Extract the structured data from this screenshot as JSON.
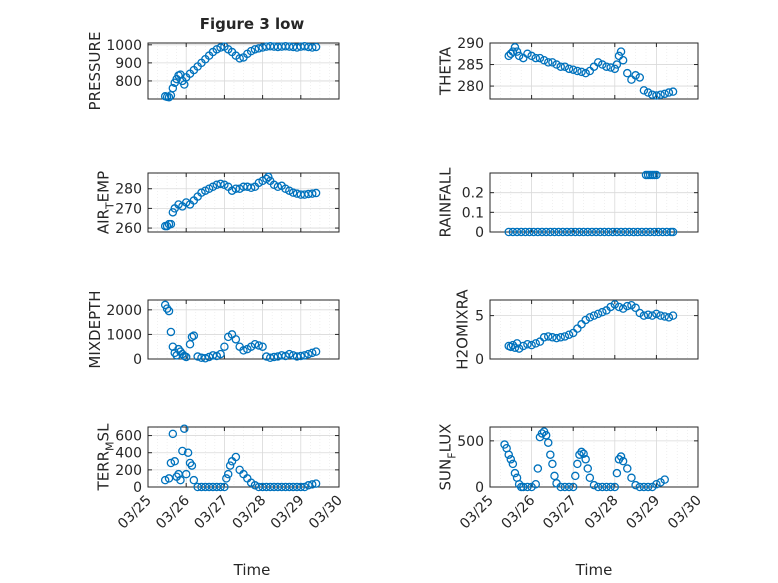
{
  "figure": {
    "title": "Figure 3 low",
    "xlabel": "Time",
    "marker_color": "#0072BD",
    "grid_color": "#d9d9d9"
  },
  "chart_data": [
    {
      "type": "scatter",
      "panel": "top-left",
      "ylabel": "PRESSURE",
      "ylabel_parts": [
        "PRESSURE"
      ],
      "title": "Figure 3 low",
      "xlim": [
        "03/25",
        "03/30"
      ],
      "xticks": [
        "03/25",
        "03/26",
        "03/27",
        "03/28",
        "03/29",
        "03/30"
      ],
      "ylim": [
        700,
        1010
      ],
      "yticks": [
        800,
        900,
        1000
      ],
      "grid": true,
      "show_xticklabels": false,
      "x": [
        25.45,
        25.5,
        25.55,
        25.6,
        25.65,
        25.7,
        25.75,
        25.8,
        25.85,
        25.9,
        25.95,
        26.0,
        26.1,
        26.2,
        26.3,
        26.4,
        26.5,
        26.6,
        26.7,
        26.8,
        26.9,
        27.0,
        27.1,
        27.2,
        27.3,
        27.4,
        27.5,
        27.6,
        27.7,
        27.8,
        27.9,
        28.0,
        28.1,
        28.2,
        28.3,
        28.4,
        28.5,
        28.6,
        28.7,
        28.8,
        28.9,
        29.0,
        29.1,
        29.2,
        29.3,
        29.4
      ],
      "y": [
        715,
        712,
        710,
        720,
        760,
        790,
        810,
        830,
        835,
        800,
        780,
        820,
        840,
        860,
        880,
        900,
        920,
        940,
        960,
        975,
        985,
        990,
        975,
        960,
        940,
        925,
        930,
        950,
        965,
        975,
        980,
        985,
        990,
        992,
        990,
        988,
        990,
        992,
        990,
        988,
        985,
        990,
        992,
        988,
        985,
        988
      ]
    },
    {
      "type": "scatter",
      "panel": "top-right",
      "ylabel": "THETA",
      "ylabel_parts": [
        "THETA"
      ],
      "xlim": [
        "03/25",
        "03/30"
      ],
      "xticks": [
        "03/25",
        "03/26",
        "03/27",
        "03/28",
        "03/29",
        "03/30"
      ],
      "ylim": [
        277,
        290
      ],
      "yticks": [
        280,
        285,
        290
      ],
      "grid": true,
      "show_xticklabels": false,
      "x": [
        25.45,
        25.5,
        25.55,
        25.6,
        25.65,
        25.7,
        25.8,
        25.9,
        26.0,
        26.1,
        26.2,
        26.3,
        26.4,
        26.5,
        26.6,
        26.7,
        26.8,
        26.9,
        27.0,
        27.1,
        27.2,
        27.3,
        27.4,
        27.5,
        27.6,
        27.7,
        27.8,
        27.9,
        28.0,
        28.05,
        28.1,
        28.15,
        28.2,
        28.3,
        28.4,
        28.5,
        28.6,
        28.7,
        28.8,
        28.9,
        29.0,
        29.1,
        29.2,
        29.3,
        29.4
      ],
      "y": [
        287,
        287.5,
        288,
        289,
        288,
        287,
        286.5,
        287.5,
        287,
        286.5,
        286.5,
        286,
        285.5,
        285.5,
        285,
        284.5,
        284.5,
        284,
        283.8,
        283.5,
        283.3,
        283,
        283.5,
        284.5,
        285.5,
        285,
        284.5,
        284.3,
        284,
        285,
        287,
        288,
        286,
        283,
        281.5,
        282.5,
        282,
        279,
        278.5,
        278,
        277.8,
        278,
        278.2,
        278.5,
        278.7
      ]
    },
    {
      "type": "scatter",
      "panel": "mid-left",
      "ylabel": "AIR_TEMP",
      "ylabel_parts": [
        "AIR",
        "T",
        "EMP"
      ],
      "xlim": [
        "03/25",
        "03/30"
      ],
      "xticks": [
        "03/25",
        "03/26",
        "03/27",
        "03/28",
        "03/29",
        "03/30"
      ],
      "ylim": [
        258,
        288
      ],
      "yticks": [
        260,
        270,
        280
      ],
      "grid": true,
      "show_xticklabels": false,
      "x": [
        25.45,
        25.5,
        25.55,
        25.6,
        25.65,
        25.7,
        25.8,
        25.9,
        26.0,
        26.1,
        26.2,
        26.3,
        26.4,
        26.5,
        26.6,
        26.7,
        26.8,
        26.9,
        27.0,
        27.1,
        27.2,
        27.3,
        27.4,
        27.5,
        27.6,
        27.7,
        27.8,
        27.9,
        28.0,
        28.1,
        28.15,
        28.2,
        28.3,
        28.4,
        28.5,
        28.6,
        28.7,
        28.8,
        28.9,
        29.0,
        29.1,
        29.2,
        29.3,
        29.4
      ],
      "y": [
        261,
        261,
        262,
        262,
        268,
        270,
        272,
        271,
        273,
        272,
        274,
        276,
        278,
        279,
        280,
        281,
        282,
        282.5,
        282,
        281,
        279,
        280,
        280,
        281,
        281,
        280.5,
        281,
        283,
        284,
        285,
        286,
        284,
        282,
        281,
        281.5,
        280,
        279,
        278,
        277.5,
        277,
        277,
        277.3,
        277.5,
        277.8
      ]
    },
    {
      "type": "scatter",
      "panel": "mid-right",
      "ylabel": "RAINFALL",
      "ylabel_parts": [
        "RAINFALL"
      ],
      "xlim": [
        "03/25",
        "03/30"
      ],
      "xticks": [
        "03/25",
        "03/26",
        "03/27",
        "03/28",
        "03/29",
        "03/30"
      ],
      "ylim": [
        0,
        0.3
      ],
      "yticks": [
        0,
        0.1,
        0.2
      ],
      "grid": true,
      "show_xticklabels": false,
      "x": [
        25.45,
        25.55,
        25.65,
        25.75,
        25.85,
        25.95,
        26.05,
        26.15,
        26.25,
        26.35,
        26.45,
        26.55,
        26.65,
        26.75,
        26.85,
        26.95,
        27.05,
        27.15,
        27.25,
        27.35,
        27.45,
        27.55,
        27.65,
        27.75,
        27.85,
        27.95,
        28.05,
        28.15,
        28.25,
        28.35,
        28.45,
        28.55,
        28.65,
        28.75,
        28.85,
        28.95,
        29.05,
        29.15,
        29.25,
        29.35,
        29.4,
        28.75,
        28.8,
        28.85,
        28.9,
        28.95,
        29.0
      ],
      "y": [
        0,
        0,
        0,
        0,
        0,
        0,
        0,
        0,
        0,
        0,
        0,
        0,
        0,
        0,
        0,
        0,
        0,
        0,
        0,
        0,
        0,
        0,
        0,
        0,
        0,
        0,
        0,
        0,
        0,
        0,
        0,
        0,
        0,
        0,
        0,
        0,
        0,
        0,
        0,
        0,
        0,
        0.29,
        0.29,
        0.29,
        0.29,
        0.29,
        0.29
      ]
    },
    {
      "type": "scatter",
      "panel": "row3-left",
      "ylabel": "MIXDEPTH",
      "ylabel_parts": [
        "MIXDEPTH"
      ],
      "xlim": [
        "03/25",
        "03/30"
      ],
      "xticks": [
        "03/25",
        "03/26",
        "03/27",
        "03/28",
        "03/29",
        "03/30"
      ],
      "ylim": [
        0,
        2400
      ],
      "yticks": [
        0,
        1000,
        2000
      ],
      "grid": true,
      "show_xticklabels": false,
      "x": [
        25.45,
        25.5,
        25.55,
        25.6,
        25.65,
        25.7,
        25.75,
        25.8,
        25.85,
        25.9,
        25.95,
        26.0,
        26.1,
        26.15,
        26.2,
        26.3,
        26.4,
        26.5,
        26.6,
        26.7,
        26.8,
        26.9,
        27.0,
        27.1,
        27.2,
        27.3,
        27.4,
        27.5,
        27.6,
        27.7,
        27.8,
        27.9,
        28.0,
        28.1,
        28.2,
        28.3,
        28.4,
        28.5,
        28.6,
        28.7,
        28.8,
        28.9,
        29.0,
        29.1,
        29.2,
        29.3,
        29.4
      ],
      "y": [
        2200,
        2050,
        1950,
        1100,
        500,
        250,
        150,
        400,
        300,
        200,
        120,
        80,
        600,
        900,
        950,
        100,
        50,
        30,
        80,
        150,
        120,
        200,
        500,
        900,
        1000,
        800,
        500,
        350,
        400,
        500,
        600,
        550,
        500,
        100,
        50,
        80,
        100,
        150,
        120,
        200,
        150,
        100,
        120,
        150,
        200,
        250,
        300
      ]
    },
    {
      "type": "scatter",
      "panel": "row3-right",
      "ylabel": "H2OMIXRA",
      "ylabel_parts": [
        "H2OMIXRA"
      ],
      "xlim": [
        "03/25",
        "03/30"
      ],
      "xticks": [
        "03/25",
        "03/26",
        "03/27",
        "03/28",
        "03/29",
        "03/30"
      ],
      "ylim": [
        0,
        6.8
      ],
      "yticks": [
        0,
        5
      ],
      "grid": true,
      "show_xticklabels": false,
      "x": [
        25.45,
        25.5,
        25.55,
        25.6,
        25.65,
        25.7,
        25.8,
        25.9,
        26.0,
        26.1,
        26.2,
        26.3,
        26.4,
        26.5,
        26.6,
        26.7,
        26.8,
        26.9,
        27.0,
        27.1,
        27.2,
        27.3,
        27.4,
        27.5,
        27.6,
        27.7,
        27.8,
        27.9,
        28.0,
        28.1,
        28.2,
        28.3,
        28.4,
        28.5,
        28.6,
        28.7,
        28.8,
        28.9,
        29.0,
        29.1,
        29.2,
        29.3,
        29.4
      ],
      "y": [
        1.5,
        1.4,
        1.6,
        1.3,
        1.8,
        1.2,
        1.5,
        1.7,
        1.6,
        1.8,
        2.0,
        2.5,
        2.6,
        2.5,
        2.4,
        2.5,
        2.6,
        2.8,
        3.0,
        3.5,
        4.0,
        4.5,
        4.8,
        5.0,
        5.2,
        5.4,
        5.6,
        6.0,
        6.3,
        6.0,
        5.8,
        6.1,
        6.2,
        5.9,
        5.3,
        5.0,
        5.1,
        5.0,
        5.2,
        5.0,
        4.9,
        4.8,
        5.0
      ]
    },
    {
      "type": "scatter",
      "panel": "bottom-left",
      "ylabel": "TERR_MSL",
      "ylabel_parts": [
        "TERR",
        "M",
        "SL"
      ],
      "xlim": [
        "03/25",
        "03/30"
      ],
      "xticks": [
        "03/25",
        "03/26",
        "03/27",
        "03/28",
        "03/29",
        "03/30"
      ],
      "ylim": [
        0,
        700
      ],
      "yticks": [
        0,
        200,
        400,
        600
      ],
      "tick_labels_left": [
        "0",
        "200",
        "400",
        "600"
      ],
      "grid": true,
      "show_xticklabels": true,
      "x": [
        25.45,
        25.55,
        25.6,
        25.65,
        25.7,
        25.75,
        25.8,
        25.85,
        25.9,
        25.95,
        26.0,
        26.05,
        26.1,
        26.15,
        26.2,
        26.3,
        26.4,
        26.5,
        26.6,
        26.7,
        26.8,
        26.9,
        27.0,
        27.05,
        27.1,
        27.15,
        27.2,
        27.3,
        27.4,
        27.5,
        27.6,
        27.7,
        27.8,
        27.9,
        28.0,
        28.1,
        28.2,
        28.3,
        28.4,
        28.5,
        28.6,
        28.7,
        28.8,
        28.9,
        29.0,
        29.1,
        29.2,
        29.3,
        29.4
      ],
      "y": [
        80,
        100,
        280,
        620,
        300,
        120,
        150,
        80,
        420,
        680,
        150,
        400,
        280,
        250,
        80,
        0,
        0,
        0,
        0,
        0,
        0,
        0,
        0,
        100,
        150,
        250,
        300,
        350,
        200,
        150,
        100,
        50,
        20,
        0,
        0,
        0,
        0,
        0,
        0,
        0,
        0,
        0,
        0,
        0,
        0,
        0,
        20,
        30,
        40
      ]
    },
    {
      "type": "scatter",
      "panel": "bottom-right",
      "ylabel": "SUN_FLUX",
      "ylabel_parts": [
        "SUN",
        "F",
        "LUX"
      ],
      "xlim": [
        "03/25",
        "03/30"
      ],
      "xticks": [
        "03/25",
        "03/26",
        "03/27",
        "03/28",
        "03/29",
        "03/30"
      ],
      "ylim": [
        0,
        650
      ],
      "yticks": [
        0,
        500
      ],
      "grid": true,
      "show_xticklabels": true,
      "x": [
        25.35,
        25.4,
        25.45,
        25.5,
        25.55,
        25.6,
        25.65,
        25.7,
        25.75,
        25.8,
        25.9,
        26.0,
        26.1,
        26.15,
        26.2,
        26.25,
        26.3,
        26.35,
        26.4,
        26.45,
        26.5,
        26.55,
        26.6,
        26.7,
        26.8,
        26.9,
        27.0,
        27.05,
        27.1,
        27.15,
        27.2,
        27.25,
        27.3,
        27.35,
        27.4,
        27.5,
        27.6,
        27.7,
        27.8,
        27.9,
        28.0,
        28.05,
        28.1,
        28.15,
        28.2,
        28.3,
        28.4,
        28.5,
        28.6,
        28.7,
        28.8,
        28.9,
        29.0,
        29.1,
        29.2
      ],
      "y": [
        460,
        420,
        350,
        300,
        250,
        150,
        100,
        30,
        0,
        0,
        0,
        0,
        30,
        200,
        540,
        580,
        600,
        560,
        480,
        350,
        250,
        120,
        40,
        0,
        0,
        0,
        0,
        120,
        250,
        350,
        380,
        360,
        300,
        200,
        100,
        20,
        0,
        0,
        0,
        0,
        0,
        150,
        300,
        330,
        280,
        200,
        100,
        20,
        0,
        0,
        0,
        0,
        30,
        50,
        80
      ]
    }
  ]
}
